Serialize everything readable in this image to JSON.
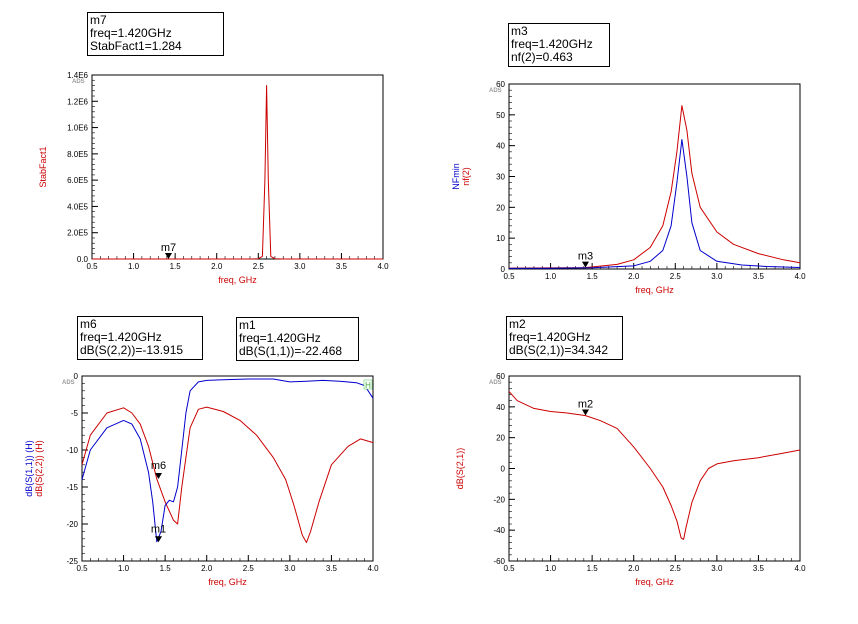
{
  "chart_data": [
    {
      "id": "stab",
      "type": "line",
      "brand": "ADS",
      "xlabel": "freq, GHz",
      "ylabels": [
        {
          "text": "StabFact1",
          "color": "#cc0000"
        }
      ],
      "xlim": [
        0.5,
        4.0
      ],
      "ylim": [
        0,
        1400000
      ],
      "xticks": [
        0.5,
        1.0,
        1.5,
        2.0,
        2.5,
        3.0,
        3.5,
        4.0
      ],
      "xtick_labels": [
        "0.5",
        "1.0",
        "1.5",
        "2.0",
        "2.5",
        "3.0",
        "3.5",
        "4.0"
      ],
      "yticks": [
        0,
        200000,
        400000,
        600000,
        800000,
        1000000,
        1200000,
        1400000
      ],
      "ytick_labels": [
        "0.0",
        "2.0E5",
        "4.0E5",
        "6.0E5",
        "8.0E5",
        "1.0E6",
        "1.2E6",
        "1.4E6"
      ],
      "series": [
        {
          "name": "StabFact1",
          "color": "#cc0000",
          "x": [
            0.5,
            2.4,
            2.5,
            2.55,
            2.58,
            2.6,
            2.62,
            2.65,
            2.7,
            2.8,
            4.0
          ],
          "y": [
            1,
            1,
            2000,
            20000,
            600000,
            1320000,
            600000,
            20000,
            2000,
            1,
            1
          ]
        }
      ],
      "markers": [
        {
          "name": "m7",
          "x": 1.42,
          "y": 1.284,
          "lines": [
            "m7",
            "freq=1.420GHz",
            "StabFact1=1.284"
          ]
        }
      ]
    },
    {
      "id": "nf",
      "type": "line",
      "brand": "ADS",
      "xlabel": "freq, GHz",
      "ylabels": [
        {
          "text": "NFmin",
          "color": "#0000cc"
        },
        {
          "text": "nf(2)",
          "color": "#cc0000"
        }
      ],
      "xlim": [
        0.5,
        4.0
      ],
      "ylim": [
        0,
        60
      ],
      "xticks": [
        0.5,
        1.0,
        1.5,
        2.0,
        2.5,
        3.0,
        3.5,
        4.0
      ],
      "xtick_labels": [
        "0.5",
        "1.0",
        "1.5",
        "2.0",
        "2.5",
        "3.0",
        "3.5",
        "4.0"
      ],
      "yticks": [
        0,
        10,
        20,
        30,
        40,
        50,
        60
      ],
      "ytick_labels": [
        "0",
        "10",
        "20",
        "30",
        "40",
        "50",
        "60"
      ],
      "series": [
        {
          "name": "nf(2)",
          "color": "#cc0000",
          "x": [
            0.5,
            1.0,
            1.42,
            1.8,
            2.0,
            2.2,
            2.35,
            2.45,
            2.52,
            2.58,
            2.64,
            2.7,
            2.8,
            3.0,
            3.2,
            3.5,
            3.8,
            4.0
          ],
          "y": [
            0.3,
            0.35,
            0.46,
            1.5,
            3.0,
            7.0,
            14.0,
            25.0,
            38.0,
            53.0,
            45.0,
            31.0,
            20.0,
            12.0,
            8.0,
            5.0,
            3.0,
            2.0
          ]
        },
        {
          "name": "NFmin",
          "color": "#0000cc",
          "x": [
            0.5,
            1.0,
            1.5,
            2.0,
            2.2,
            2.35,
            2.45,
            2.52,
            2.58,
            2.64,
            2.7,
            2.8,
            3.0,
            3.3,
            3.6,
            4.0
          ],
          "y": [
            0.2,
            0.25,
            0.4,
            1.0,
            2.5,
            6.0,
            14.0,
            28.0,
            42.0,
            30.0,
            15.0,
            6.0,
            2.5,
            1.3,
            0.8,
            0.5
          ]
        }
      ],
      "markers": [
        {
          "name": "m3",
          "x": 1.42,
          "y": 0.463,
          "lines": [
            "m3",
            "freq=1.420GHz",
            "nf(2)=0.463"
          ]
        }
      ]
    },
    {
      "id": "s11s22",
      "type": "line",
      "brand": "ADS",
      "xlabel": "freq, GHz",
      "ylabels": [
        {
          "text": "dB(S(1,1)) (H)",
          "color": "#0000cc"
        },
        {
          "text": "dB(S(2,2)) (H)",
          "color": "#cc0000"
        }
      ],
      "xlim": [
        0.5,
        4.0
      ],
      "ylim": [
        -25,
        0
      ],
      "xticks": [
        0.5,
        1.0,
        1.5,
        2.0,
        2.5,
        3.0,
        3.5,
        4.0
      ],
      "xtick_labels": [
        "0.5",
        "1.0",
        "1.5",
        "2.0",
        "2.5",
        "3.0",
        "3.5",
        "4.0"
      ],
      "yticks": [
        -25,
        -20,
        -15,
        -10,
        -5,
        0
      ],
      "ytick_labels": [
        "-25",
        "-20",
        "-15",
        "-10",
        "-5",
        "0"
      ],
      "legend_marker": "H",
      "series": [
        {
          "name": "dB(S(2,2))",
          "color": "#cc0000",
          "x": [
            0.5,
            0.6,
            0.8,
            1.0,
            1.1,
            1.2,
            1.3,
            1.4,
            1.5,
            1.6,
            1.65,
            1.7,
            1.8,
            1.9,
            2.0,
            2.2,
            2.4,
            2.6,
            2.8,
            2.95,
            3.05,
            3.15,
            3.2,
            3.25,
            3.35,
            3.5,
            3.7,
            3.85,
            4.0
          ],
          "y": [
            -12.0,
            -8.0,
            -5.0,
            -4.3,
            -5.0,
            -6.5,
            -9.5,
            -13.9,
            -17.0,
            -19.5,
            -20.0,
            -15.0,
            -7.0,
            -4.5,
            -4.2,
            -4.8,
            -6.0,
            -8.0,
            -11.0,
            -14.0,
            -17.5,
            -21.5,
            -22.5,
            -21.0,
            -17.0,
            -12.0,
            -9.5,
            -8.5,
            -9.0
          ]
        },
        {
          "name": "dB(S(1,1))",
          "color": "#0000cc",
          "x": [
            0.5,
            0.6,
            0.8,
            1.0,
            1.1,
            1.2,
            1.3,
            1.35,
            1.4,
            1.45,
            1.5,
            1.55,
            1.6,
            1.65,
            1.7,
            1.75,
            1.8,
            1.9,
            2.0,
            2.2,
            2.5,
            2.8,
            3.0,
            3.2,
            3.4,
            3.6,
            3.8,
            3.9,
            4.0
          ],
          "y": [
            -14.0,
            -10.0,
            -7.0,
            -6.0,
            -6.5,
            -8.5,
            -13.0,
            -17.0,
            -22.4,
            -21.0,
            -17.5,
            -16.8,
            -17.0,
            -15.0,
            -10.0,
            -5.0,
            -2.0,
            -0.8,
            -0.6,
            -0.5,
            -0.4,
            -0.4,
            -0.8,
            -0.7,
            -0.6,
            -0.7,
            -0.9,
            -1.3,
            -3.0
          ]
        }
      ],
      "markers": [
        {
          "name": "m6",
          "x": 1.42,
          "y": -13.915,
          "lines": [
            "m6",
            "freq=1.420GHz",
            "dB(S(2,2))=-13.915"
          ]
        },
        {
          "name": "m1",
          "x": 1.42,
          "y": -22.468,
          "lines": [
            "m1",
            "freq=1.420GHz",
            "dB(S(1,1))=-22.468"
          ]
        }
      ]
    },
    {
      "id": "s21",
      "type": "line",
      "brand": "ADS",
      "xlabel": "freq, GHz",
      "ylabels": [
        {
          "text": "dB(S(2,1))",
          "color": "#cc0000"
        }
      ],
      "xlim": [
        0.5,
        4.0
      ],
      "ylim": [
        -60,
        60
      ],
      "xticks": [
        0.5,
        1.0,
        1.5,
        2.0,
        2.5,
        3.0,
        3.5,
        4.0
      ],
      "xtick_labels": [
        "0.5",
        "1.0",
        "1.5",
        "2.0",
        "2.5",
        "3.0",
        "3.5",
        "4.0"
      ],
      "yticks": [
        -60,
        -40,
        -20,
        0,
        20,
        40,
        60
      ],
      "ytick_labels": [
        "-60",
        "-40",
        "-20",
        "0",
        "20",
        "40",
        "60"
      ],
      "series": [
        {
          "name": "dB(S(2,1))",
          "color": "#cc0000",
          "x": [
            0.5,
            0.6,
            0.8,
            1.0,
            1.2,
            1.42,
            1.6,
            1.8,
            2.0,
            2.2,
            2.35,
            2.45,
            2.52,
            2.57,
            2.6,
            2.63,
            2.7,
            2.8,
            2.9,
            3.0,
            3.2,
            3.5,
            3.8,
            4.0
          ],
          "y": [
            50.0,
            44.0,
            39.0,
            37.0,
            36.0,
            34.3,
            31.0,
            26.0,
            14.0,
            0.0,
            -12.0,
            -24.0,
            -34.0,
            -45.0,
            -46.0,
            -38.0,
            -22.0,
            -8.0,
            0.0,
            3.0,
            5.0,
            7.0,
            10.0,
            12.0
          ]
        }
      ],
      "markers": [
        {
          "name": "m2",
          "x": 1.42,
          "y": 34.342,
          "lines": [
            "m2",
            "freq=1.420GHz",
            "dB(S(2,1))=34.342"
          ]
        }
      ]
    }
  ]
}
